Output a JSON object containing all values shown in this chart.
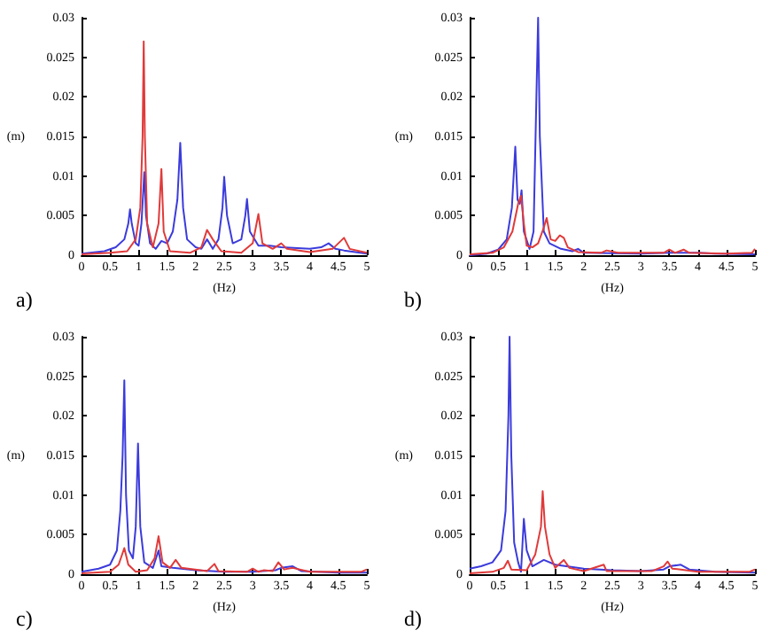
{
  "chart_data": [
    {
      "type": "line",
      "title": "a)",
      "xlabel": "(Hz)",
      "ylabel": "(m)",
      "xlim": [
        0,
        5
      ],
      "xticks": [
        0,
        0.5,
        1,
        1.5,
        2,
        2.5,
        3,
        3.5,
        4,
        4.5,
        5
      ],
      "ylim": [
        0,
        0.03
      ],
      "yticks": [
        0,
        0.005,
        0.01,
        0.015,
        0.02,
        0.025,
        0.03
      ],
      "grid": false,
      "marker": "none",
      "series": [
        {
          "color": "#3b3bdc",
          "x": [
            0,
            0.4,
            0.6,
            0.75,
            0.82,
            0.85,
            0.88,
            0.95,
            1.0,
            1.05,
            1.1,
            1.13,
            1.2,
            1.3,
            1.4,
            1.5,
            1.6,
            1.68,
            1.73,
            1.78,
            1.85,
            2.0,
            2.1,
            2.2,
            2.3,
            2.4,
            2.47,
            2.5,
            2.55,
            2.65,
            2.8,
            2.87,
            2.9,
            2.95,
            3.1,
            3.3,
            3.5,
            4.0,
            4.2,
            4.33,
            4.45,
            4.6,
            5
          ],
          "values": [
            0.0002,
            0.0005,
            0.001,
            0.002,
            0.004,
            0.0058,
            0.004,
            0.0015,
            0.0012,
            0.004,
            0.0105,
            0.005,
            0.0015,
            0.0008,
            0.0018,
            0.0015,
            0.003,
            0.007,
            0.0142,
            0.006,
            0.002,
            0.001,
            0.0008,
            0.002,
            0.0008,
            0.002,
            0.006,
            0.0099,
            0.005,
            0.0015,
            0.002,
            0.005,
            0.0071,
            0.003,
            0.0012,
            0.0012,
            0.001,
            0.0008,
            0.001,
            0.0015,
            0.0008,
            0.0006,
            0.0002
          ]
        },
        {
          "color": "#e03a3a",
          "x": [
            0,
            0.5,
            0.8,
            0.95,
            1.03,
            1.07,
            1.09,
            1.11,
            1.15,
            1.25,
            1.35,
            1.4,
            1.44,
            1.55,
            1.9,
            2.1,
            2.2,
            2.3,
            2.35,
            2.45,
            2.8,
            3.0,
            3.1,
            3.17,
            3.35,
            3.5,
            3.6,
            4.0,
            4.4,
            4.6,
            4.7,
            5
          ],
          "values": [
            0.0001,
            0.0003,
            0.0005,
            0.002,
            0.006,
            0.015,
            0.027,
            0.015,
            0.004,
            0.001,
            0.004,
            0.0109,
            0.003,
            0.0005,
            0.0003,
            0.001,
            0.0032,
            0.002,
            0.0015,
            0.0005,
            0.0003,
            0.0015,
            0.0052,
            0.0015,
            0.0008,
            0.0015,
            0.0008,
            0.0004,
            0.0008,
            0.0022,
            0.0008,
            0.0003
          ]
        }
      ]
    },
    {
      "type": "line",
      "title": "b)",
      "xlabel": "(Hz)",
      "ylabel": "(m)",
      "xlim": [
        0,
        5
      ],
      "xticks": [
        0,
        0.5,
        1,
        1.5,
        2,
        2.5,
        3,
        3.5,
        4,
        4.5,
        5
      ],
      "ylim": [
        0,
        0.03
      ],
      "yticks": [
        0,
        0.005,
        0.01,
        0.015,
        0.02,
        0.025,
        0.03
      ],
      "grid": false,
      "marker": "none",
      "series": [
        {
          "color": "#3b3bdc",
          "x": [
            0,
            0.3,
            0.5,
            0.65,
            0.74,
            0.8,
            0.84,
            0.88,
            0.91,
            0.95,
            1.05,
            1.12,
            1.17,
            1.2,
            1.23,
            1.3,
            1.4,
            1.6,
            1.8,
            1.9,
            2.0,
            3,
            3.5,
            4,
            4.3,
            5
          ],
          "values": [
            0,
            0.0002,
            0.0007,
            0.002,
            0.006,
            0.0137,
            0.007,
            0.0065,
            0.0082,
            0.003,
            0.0008,
            0.003,
            0.02,
            0.03,
            0.015,
            0.003,
            0.0015,
            0.0008,
            0.0005,
            0.0008,
            0.0003,
            0.0002,
            0.0003,
            0.0003,
            0.0002,
            0.0001
          ]
        },
        {
          "color": "#e03a3a",
          "x": [
            0,
            0.4,
            0.6,
            0.75,
            0.85,
            0.9,
            0.95,
            1.0,
            1.1,
            1.2,
            1.3,
            1.35,
            1.42,
            1.5,
            1.58,
            1.65,
            1.72,
            1.9,
            2.3,
            2.4,
            2.6,
            3.0,
            3.4,
            3.5,
            3.6,
            3.75,
            3.85,
            4.5,
            4.95,
            5
          ],
          "values": [
            0.0001,
            0.0003,
            0.001,
            0.003,
            0.0065,
            0.0075,
            0.004,
            0.0012,
            0.001,
            0.0015,
            0.0035,
            0.0047,
            0.002,
            0.0018,
            0.0025,
            0.0022,
            0.001,
            0.0004,
            0.0003,
            0.0006,
            0.0003,
            0.0003,
            0.0003,
            0.0007,
            0.0003,
            0.0007,
            0.0003,
            0.0002,
            0.0003,
            0.0008
          ]
        }
      ]
    },
    {
      "type": "line",
      "title": "c)",
      "xlabel": "(Hz)",
      "ylabel": "(m)",
      "xlim": [
        0,
        5
      ],
      "xticks": [
        0,
        0.5,
        1,
        1.5,
        2,
        2.5,
        3,
        3.5,
        4,
        4.5,
        5
      ],
      "ylim": [
        0,
        0.03
      ],
      "yticks": [
        0,
        0.005,
        0.01,
        0.015,
        0.02,
        0.025,
        0.03
      ],
      "grid": false,
      "marker": "none",
      "series": [
        {
          "color": "#3b3bdc",
          "x": [
            0,
            0.3,
            0.5,
            0.62,
            0.68,
            0.72,
            0.75,
            0.78,
            0.83,
            0.9,
            0.95,
            0.99,
            1.03,
            1.1,
            1.25,
            1.35,
            1.4,
            1.6,
            2,
            2.5,
            3,
            3.4,
            3.5,
            3.7,
            3.85,
            4.5,
            5
          ],
          "values": [
            0.0003,
            0.0007,
            0.0012,
            0.003,
            0.008,
            0.015,
            0.0245,
            0.01,
            0.003,
            0.002,
            0.006,
            0.0165,
            0.006,
            0.0015,
            0.0008,
            0.003,
            0.001,
            0.0008,
            0.0005,
            0.0003,
            0.0003,
            0.0005,
            0.0008,
            0.001,
            0.0004,
            0.0002,
            0.0002
          ]
        },
        {
          "color": "#e03a3a",
          "x": [
            0,
            0.5,
            0.65,
            0.75,
            0.82,
            0.95,
            1.15,
            1.28,
            1.35,
            1.42,
            1.55,
            1.65,
            1.75,
            2.2,
            2.33,
            2.4,
            2.9,
            3.0,
            3.1,
            3.2,
            3.35,
            3.45,
            3.55,
            3.7,
            4.0,
            4.9,
            5
          ],
          "values": [
            0.0001,
            0.0003,
            0.0012,
            0.0033,
            0.0012,
            0.0003,
            0.0005,
            0.002,
            0.0048,
            0.0015,
            0.0008,
            0.0018,
            0.0008,
            0.0004,
            0.0013,
            0.0004,
            0.0003,
            0.0007,
            0.0003,
            0.0005,
            0.0004,
            0.0015,
            0.0006,
            0.0008,
            0.0003,
            0.0003,
            0.0006
          ]
        }
      ]
    },
    {
      "type": "line",
      "title": "d)",
      "xlabel": "(Hz)",
      "ylabel": "(m)",
      "xlim": [
        0,
        5
      ],
      "xticks": [
        0,
        0.5,
        1,
        1.5,
        2,
        2.5,
        3,
        3.5,
        4,
        4.5,
        5
      ],
      "ylim": [
        0,
        0.03
      ],
      "yticks": [
        0,
        0.005,
        0.01,
        0.015,
        0.02,
        0.025,
        0.03
      ],
      "grid": false,
      "marker": "none",
      "series": [
        {
          "color": "#3b3bdc",
          "x": [
            0,
            0.2,
            0.4,
            0.55,
            0.63,
            0.68,
            0.7,
            0.73,
            0.78,
            0.85,
            0.9,
            0.95,
            1.0,
            1.1,
            1.3,
            1.5,
            2.0,
            2.5,
            3,
            3.4,
            3.5,
            3.7,
            3.85,
            4.3,
            5
          ],
          "values": [
            0.0007,
            0.001,
            0.0015,
            0.003,
            0.008,
            0.02,
            0.03,
            0.015,
            0.004,
            0.0015,
            0.0003,
            0.007,
            0.003,
            0.001,
            0.0018,
            0.0012,
            0.0007,
            0.0005,
            0.0004,
            0.0006,
            0.001,
            0.0012,
            0.0006,
            0.0003,
            0.0002
          ]
        },
        {
          "color": "#e03a3a",
          "x": [
            0,
            0.4,
            0.6,
            0.67,
            0.73,
            1.0,
            1.15,
            1.25,
            1.28,
            1.32,
            1.4,
            1.5,
            1.65,
            1.75,
            2.0,
            2.35,
            2.4,
            3.0,
            3.2,
            3.4,
            3.47,
            3.55,
            3.7,
            4.0,
            4.9,
            5
          ],
          "values": [
            0.0001,
            0.0003,
            0.0008,
            0.0017,
            0.0006,
            0.0005,
            0.0025,
            0.006,
            0.0105,
            0.006,
            0.0025,
            0.0008,
            0.0018,
            0.0008,
            0.0004,
            0.0012,
            0.0004,
            0.0004,
            0.0004,
            0.001,
            0.0016,
            0.0007,
            0.0006,
            0.0003,
            0.0003,
            0.0006
          ]
        }
      ]
    }
  ]
}
